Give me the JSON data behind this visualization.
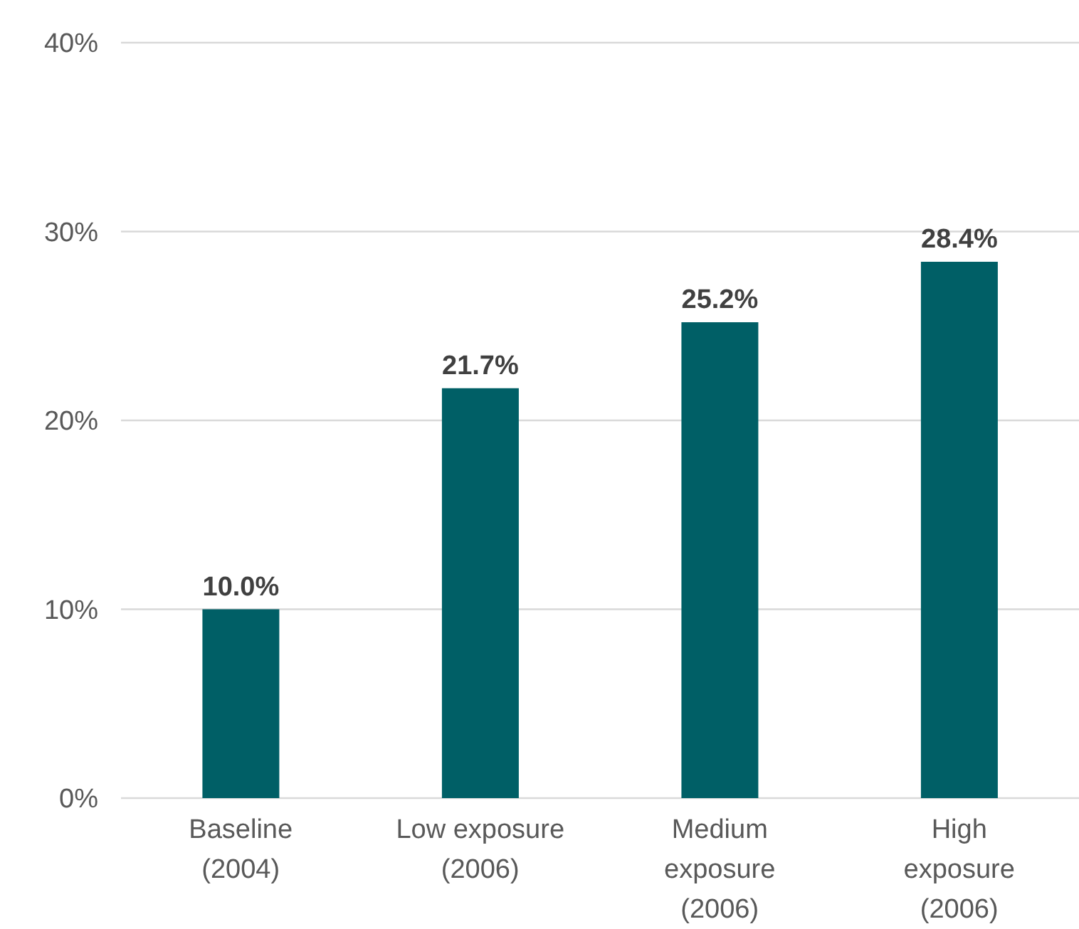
{
  "chart_data": {
    "type": "bar",
    "categories": [
      "Baseline (2004)",
      "Low exposure (2006)",
      "Medium exposure (2006)",
      "High exposure (2006)"
    ],
    "values": [
      10.0,
      21.7,
      25.2,
      28.4
    ],
    "value_labels": [
      "10.0%",
      "21.7%",
      "25.2%",
      "28.4%"
    ],
    "color": "#005f66",
    "ylim": [
      0,
      40
    ],
    "yticks": [
      {
        "value": 0,
        "label": "0%"
      },
      {
        "value": 10,
        "label": "10%"
      },
      {
        "value": 20,
        "label": "20%"
      },
      {
        "value": 30,
        "label": "30%"
      },
      {
        "value": 40,
        "label": "40%"
      }
    ],
    "grid": "y"
  }
}
